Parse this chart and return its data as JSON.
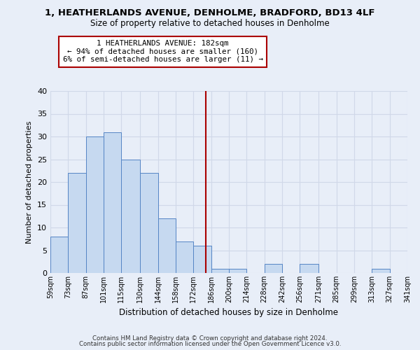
{
  "title": "1, HEATHERLANDS AVENUE, DENHOLME, BRADFORD, BD13 4LF",
  "subtitle": "Size of property relative to detached houses in Denholme",
  "xlabel": "Distribution of detached houses by size in Denholme",
  "ylabel": "Number of detached properties",
  "bar_left_edges": [
    59,
    73,
    87,
    101,
    115,
    130,
    144,
    158,
    172,
    186,
    200,
    214,
    228,
    242,
    256,
    271,
    285,
    299,
    313,
    327
  ],
  "bar_widths": [
    14,
    14,
    14,
    14,
    15,
    14,
    14,
    14,
    14,
    14,
    14,
    14,
    14,
    14,
    15,
    14,
    14,
    14,
    14,
    14
  ],
  "bar_heights": [
    8,
    22,
    30,
    31,
    25,
    22,
    12,
    7,
    6,
    1,
    1,
    0,
    2,
    0,
    2,
    0,
    0,
    0,
    1,
    0
  ],
  "tick_labels": [
    "59sqm",
    "73sqm",
    "87sqm",
    "101sqm",
    "115sqm",
    "130sqm",
    "144sqm",
    "158sqm",
    "172sqm",
    "186sqm",
    "200sqm",
    "214sqm",
    "228sqm",
    "242sqm",
    "256sqm",
    "271sqm",
    "285sqm",
    "299sqm",
    "313sqm",
    "327sqm",
    "341sqm"
  ],
  "bar_color": "#c6d9f0",
  "bar_edge_color": "#5585c5",
  "vline_x": 182,
  "vline_color": "#aa0000",
  "annotation_text": "1 HEATHERLANDS AVENUE: 182sqm\n← 94% of detached houses are smaller (160)\n6% of semi-detached houses are larger (11) →",
  "annotation_box_color": "#ffffff",
  "annotation_box_edge": "#aa0000",
  "ylim": [
    0,
    40
  ],
  "yticks": [
    0,
    5,
    10,
    15,
    20,
    25,
    30,
    35,
    40
  ],
  "grid_color": "#d0d8e8",
  "bg_color": "#e8eef8",
  "footer_line1": "Contains HM Land Registry data © Crown copyright and database right 2024.",
  "footer_line2": "Contains public sector information licensed under the Open Government Licence v3.0."
}
